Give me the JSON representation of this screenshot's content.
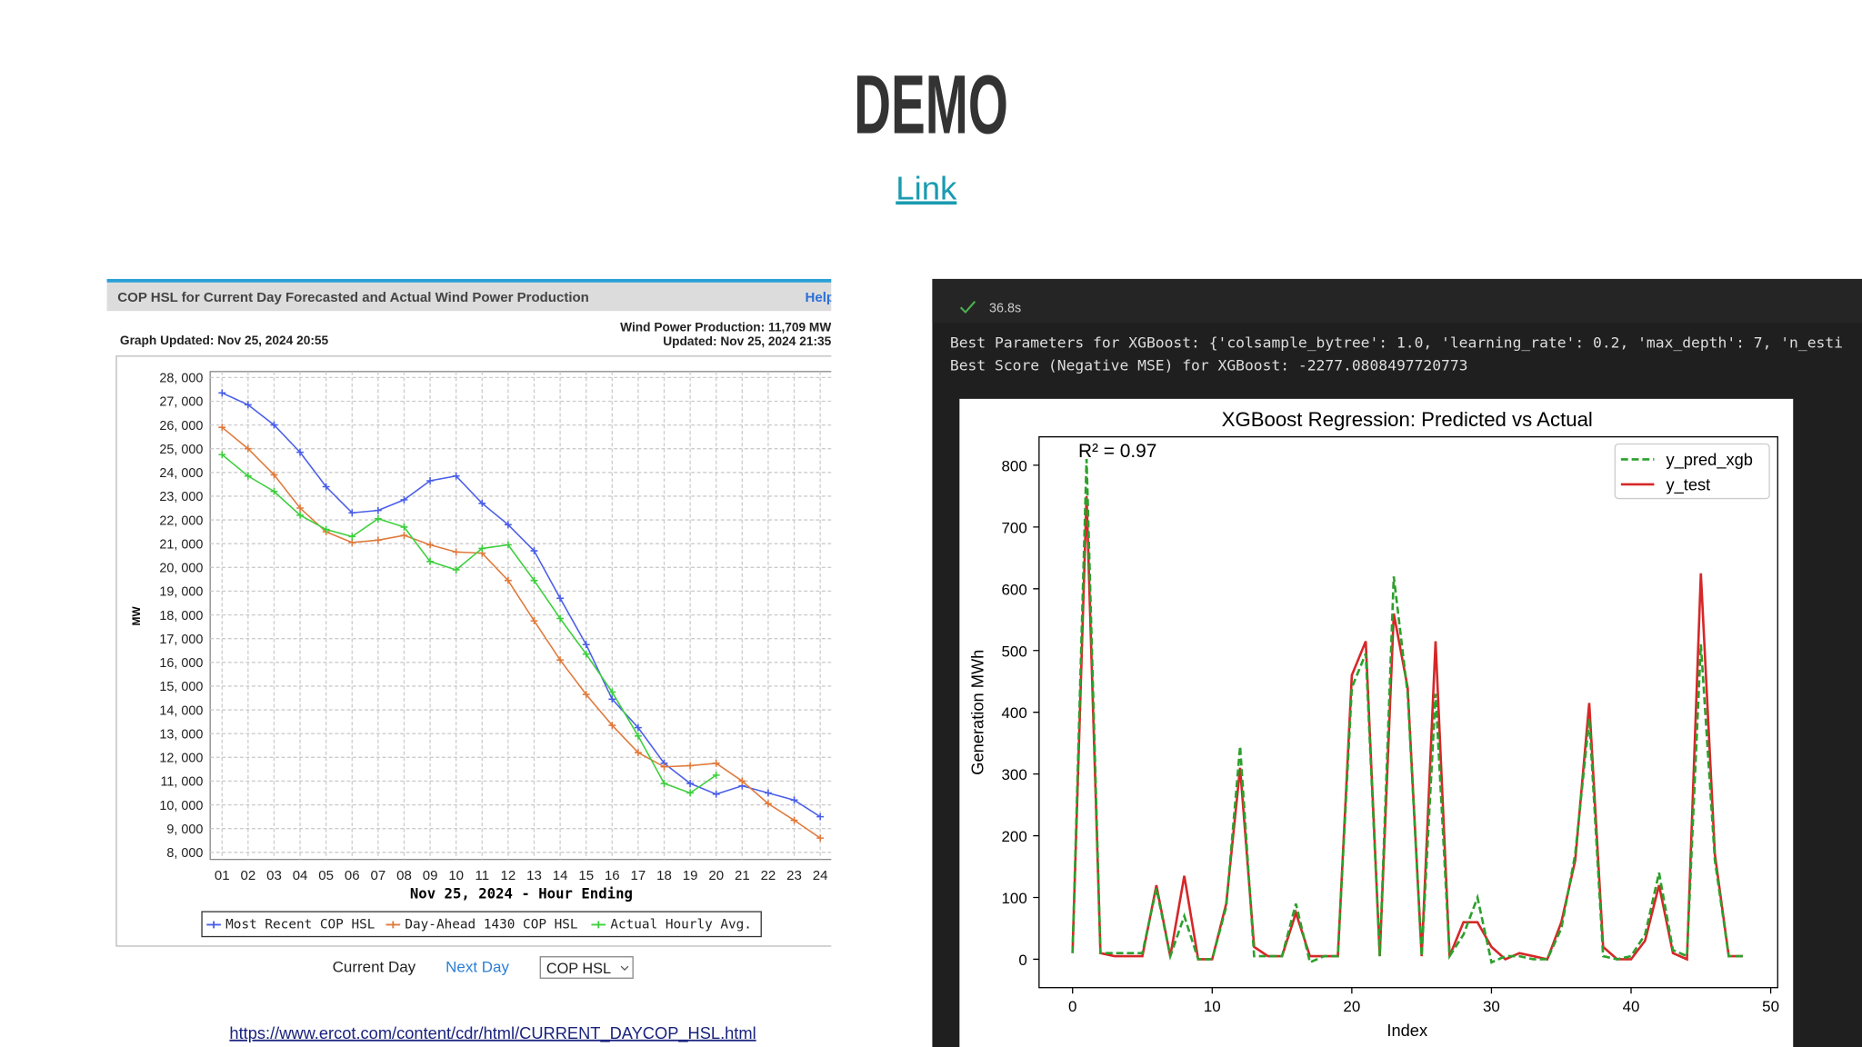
{
  "slide": {
    "title": "DEMO",
    "link": "Link"
  },
  "ercot": {
    "header": "COP HSL for Current Day Forecasted and Actual Wind Power Production",
    "help": "Help",
    "graph_updated": "Graph Updated: Nov 25, 2024 20:55",
    "production": "Wind Power Production: 11,709 MW",
    "updated": "Updated: Nov 25, 2024 21:35",
    "chart_data": {
      "type": "line",
      "y_label": "MW",
      "x_label": "Nov 25, 2024 - Hour Ending",
      "categories": [
        "01",
        "02",
        "03",
        "04",
        "05",
        "06",
        "07",
        "08",
        "09",
        "10",
        "11",
        "12",
        "13",
        "14",
        "15",
        "16",
        "17",
        "18",
        "19",
        "20",
        "21",
        "22",
        "23",
        "24"
      ],
      "ylim": [
        7700,
        28250
      ],
      "yticks": [
        {
          "value": 8000,
          "label": "8, 000"
        },
        {
          "value": 9000,
          "label": "9, 000"
        },
        {
          "value": 10000,
          "label": "10, 000"
        },
        {
          "value": 11000,
          "label": "11, 000"
        },
        {
          "value": 12000,
          "label": "12, 000"
        },
        {
          "value": 13000,
          "label": "13, 000"
        },
        {
          "value": 14000,
          "label": "14, 000"
        },
        {
          "value": 15000,
          "label": "15, 000"
        },
        {
          "value": 16000,
          "label": "16, 000"
        },
        {
          "value": 17000,
          "label": "17, 000"
        },
        {
          "value": 18000,
          "label": "18, 000"
        },
        {
          "value": 19000,
          "label": "19, 000"
        },
        {
          "value": 20000,
          "label": "20, 000"
        },
        {
          "value": 21000,
          "label": "21, 000"
        },
        {
          "value": 22000,
          "label": "22, 000"
        },
        {
          "value": 23000,
          "label": "23, 000"
        },
        {
          "value": 24000,
          "label": "24, 000"
        },
        {
          "value": 25000,
          "label": "25, 000"
        },
        {
          "value": 26000,
          "label": "26, 000"
        },
        {
          "value": 27000,
          "label": "27, 000"
        },
        {
          "value": 28000,
          "label": "28, 000"
        }
      ],
      "grid": true,
      "series": [
        {
          "name": "Most Recent COP HSL",
          "color": "#4a5ee8",
          "values": [
            27350,
            26850,
            26000,
            24850,
            23400,
            22300,
            22400,
            22850,
            23650,
            23850,
            22700,
            21800,
            20700,
            18700,
            16750,
            14450,
            13250,
            11750,
            10900,
            10450,
            10800,
            10500,
            10200,
            9500
          ]
        },
        {
          "name": "Day-Ahead 1430 COP HSL",
          "color": "#e07a3c",
          "values": [
            25900,
            25000,
            23900,
            22500,
            21500,
            21050,
            21150,
            21350,
            20950,
            20650,
            20600,
            19450,
            17750,
            16100,
            14650,
            13350,
            12200,
            11600,
            11650,
            11750,
            11000,
            10050,
            9350,
            8600
          ]
        },
        {
          "name": "Actual Hourly Avg.",
          "color": "#3ccf3c",
          "values": [
            24750,
            23850,
            23200,
            22200,
            21600,
            21300,
            22050,
            21700,
            20250,
            19900,
            20800,
            20950,
            19450,
            17850,
            16350,
            14750,
            12900,
            10900,
            10500,
            11250,
            null,
            null,
            null,
            null
          ]
        }
      ]
    },
    "nav": {
      "current": "Current Day",
      "next": "Next Day",
      "select": "COP HSL"
    },
    "url": "https://www.ercot.com/content/cdr/html/CURRENT_DAYCOP_HSL.html"
  },
  "notebook": {
    "status": "36.8s",
    "output": [
      "Best Parameters for XGBoost: {'colsample_bytree': 1.0, 'learning_rate': 0.2, 'max_depth': 7, 'n_esti",
      "Best Score (Negative MSE) for XGBoost: -2277.0808497720773"
    ],
    "chart_data": {
      "type": "line",
      "title": "XGBoost Regression: Predicted vs Actual",
      "annotation": "R² = 0.97",
      "x_label": "Index",
      "y_label": "Generation MWh",
      "x": [
        0,
        1,
        2,
        3,
        4,
        5,
        6,
        7,
        8,
        9,
        10,
        11,
        12,
        13,
        14,
        15,
        16,
        17,
        18,
        19,
        20,
        21,
        22,
        23,
        24,
        25,
        26,
        27,
        28,
        29,
        30,
        31,
        32,
        33,
        34,
        35,
        36,
        37,
        38,
        39,
        40,
        41,
        42,
        43,
        44,
        45,
        46,
        47,
        48
      ],
      "xlim": [
        -2.4,
        50.5
      ],
      "xticks": [
        0,
        10,
        20,
        30,
        40,
        50
      ],
      "ylim": [
        -46,
        846
      ],
      "yticks": [
        0,
        100,
        200,
        300,
        400,
        500,
        600,
        700,
        800
      ],
      "legend": "upper right",
      "series": [
        {
          "name": "y_pred_xgb",
          "color": "#2ca02c",
          "dashed": true,
          "values": [
            10,
            810,
            10,
            10,
            10,
            10,
            115,
            5,
            70,
            0,
            0,
            85,
            345,
            5,
            5,
            5,
            90,
            -5,
            5,
            5,
            440,
            495,
            5,
            620,
            430,
            5,
            430,
            5,
            40,
            100,
            -5,
            5,
            5,
            0,
            0,
            50,
            170,
            390,
            5,
            0,
            5,
            40,
            140,
            15,
            5,
            510,
            160,
            5,
            5
          ]
        },
        {
          "name": "y_test",
          "color": "#d62728",
          "dashed": false,
          "values": [
            10,
            750,
            10,
            5,
            5,
            5,
            120,
            5,
            135,
            0,
            0,
            90,
            310,
            20,
            5,
            5,
            75,
            5,
            5,
            5,
            460,
            515,
            5,
            560,
            440,
            5,
            515,
            5,
            60,
            60,
            20,
            0,
            10,
            5,
            0,
            60,
            160,
            415,
            20,
            0,
            0,
            30,
            120,
            10,
            0,
            625,
            170,
            5,
            5
          ]
        }
      ]
    }
  }
}
